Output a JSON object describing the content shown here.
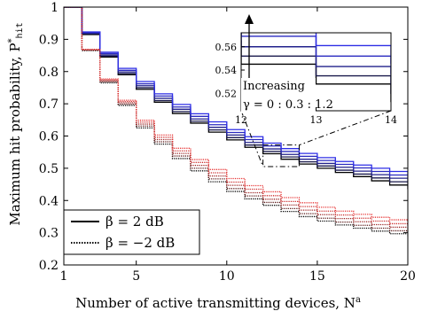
{
  "chart_data": {
    "type": "line",
    "step": true,
    "xlabel": "Number of active transmitting devices, N",
    "xlabel_sup": "a",
    "ylabel": "Maximum hit probability, P",
    "ylabel_sup": "*",
    "ylabel_sub": "hit",
    "xlim": [
      1,
      20
    ],
    "ylim": [
      0.2,
      1.0
    ],
    "x_ticks": [
      1,
      5,
      10,
      15,
      20
    ],
    "y_ticks": [
      0.2,
      0.3,
      0.4,
      0.5,
      0.6,
      0.7,
      0.8,
      0.9,
      1
    ],
    "grid": false,
    "legend": {
      "placement": "bottom-left",
      "entries": [
        {
          "label": "β = 2 dB",
          "style": "solid",
          "color": "#000000"
        },
        {
          "label": "β = −2 dB",
          "style": "dotted",
          "color": "#000000"
        }
      ]
    },
    "x": [
      1,
      2,
      3,
      4,
      5,
      6,
      7,
      8,
      9,
      10,
      11,
      12,
      13,
      14,
      15,
      16,
      17,
      18,
      19,
      20
    ],
    "series": [
      {
        "beta": "2 dB",
        "gamma": 0.0,
        "style": "solid",
        "color": "#000000",
        "values": [
          1.0,
          0.915,
          0.845,
          0.79,
          0.745,
          0.705,
          0.67,
          0.64,
          0.612,
          0.588,
          0.565,
          0.545,
          0.528,
          0.513,
          0.5,
          0.487,
          0.474,
          0.461,
          0.448,
          0.435
        ]
      },
      {
        "beta": "2 dB",
        "gamma": 0.3,
        "style": "solid",
        "color": "#1a1a4d",
        "values": [
          1.0,
          0.917,
          0.848,
          0.794,
          0.75,
          0.71,
          0.676,
          0.646,
          0.619,
          0.595,
          0.572,
          0.552,
          0.535,
          0.52,
          0.507,
          0.494,
          0.482,
          0.47,
          0.458,
          0.446
        ]
      },
      {
        "beta": "2 dB",
        "gamma": 0.6,
        "style": "solid",
        "color": "#22228c",
        "values": [
          1.0,
          0.919,
          0.852,
          0.799,
          0.756,
          0.717,
          0.683,
          0.653,
          0.627,
          0.603,
          0.58,
          0.56,
          0.543,
          0.528,
          0.515,
          0.503,
          0.491,
          0.48,
          0.469,
          0.458
        ]
      },
      {
        "beta": "2 dB",
        "gamma": 0.9,
        "style": "solid",
        "color": "#2a2ac0",
        "values": [
          1.0,
          0.921,
          0.856,
          0.804,
          0.762,
          0.724,
          0.69,
          0.661,
          0.635,
          0.611,
          0.589,
          0.569,
          0.552,
          0.537,
          0.524,
          0.512,
          0.501,
          0.49,
          0.479,
          0.469
        ]
      },
      {
        "beta": "2 dB",
        "gamma": 1.2,
        "style": "solid",
        "color": "#2e2ee6",
        "values": [
          1.0,
          0.923,
          0.86,
          0.81,
          0.769,
          0.731,
          0.698,
          0.669,
          0.644,
          0.62,
          0.598,
          0.578,
          0.561,
          0.546,
          0.533,
          0.521,
          0.51,
          0.5,
          0.49,
          0.48
        ]
      },
      {
        "beta": "-2 dB",
        "gamma": 0.0,
        "style": "dotted",
        "color": "#000000",
        "values": [
          1.0,
          0.865,
          0.765,
          0.695,
          0.625,
          0.575,
          0.53,
          0.492,
          0.458,
          0.428,
          0.405,
          0.385,
          0.366,
          0.35,
          0.336,
          0.324,
          0.314,
          0.305,
          0.297,
          0.29
        ]
      },
      {
        "beta": "-2 dB",
        "gamma": 0.3,
        "style": "dotted",
        "color": "#551111",
        "values": [
          1.0,
          0.866,
          0.768,
          0.699,
          0.631,
          0.582,
          0.538,
          0.5,
          0.467,
          0.437,
          0.414,
          0.394,
          0.375,
          0.359,
          0.345,
          0.333,
          0.323,
          0.314,
          0.306,
          0.299
        ]
      },
      {
        "beta": "-2 dB",
        "gamma": 0.6,
        "style": "dotted",
        "color": "#991c1c",
        "values": [
          1.0,
          0.867,
          0.771,
          0.703,
          0.637,
          0.589,
          0.546,
          0.509,
          0.476,
          0.447,
          0.424,
          0.404,
          0.386,
          0.37,
          0.356,
          0.344,
          0.334,
          0.325,
          0.317,
          0.31
        ]
      },
      {
        "beta": "-2 dB",
        "gamma": 0.9,
        "style": "dotted",
        "color": "#cc2626",
        "values": [
          1.0,
          0.868,
          0.774,
          0.707,
          0.643,
          0.596,
          0.554,
          0.518,
          0.486,
          0.457,
          0.435,
          0.415,
          0.397,
          0.381,
          0.367,
          0.355,
          0.345,
          0.336,
          0.328,
          0.321
        ]
      },
      {
        "beta": "-2 dB",
        "gamma": 1.2,
        "style": "dotted",
        "color": "#e63030",
        "values": [
          1.0,
          0.869,
          0.777,
          0.711,
          0.649,
          0.603,
          0.562,
          0.527,
          0.496,
          0.468,
          0.446,
          0.427,
          0.409,
          0.393,
          0.379,
          0.367,
          0.357,
          0.348,
          0.34,
          0.333
        ]
      }
    ],
    "inset": {
      "xlim": [
        12,
        14
      ],
      "ylim": [
        0.505,
        0.572
      ],
      "x_ticks": [
        12,
        13,
        14
      ],
      "y_ticks": [
        0.52,
        0.54,
        0.56
      ],
      "annotation_line1": "Increasing",
      "annotation_line2": "γ = 0 : 0.3 : 1.2"
    }
  }
}
